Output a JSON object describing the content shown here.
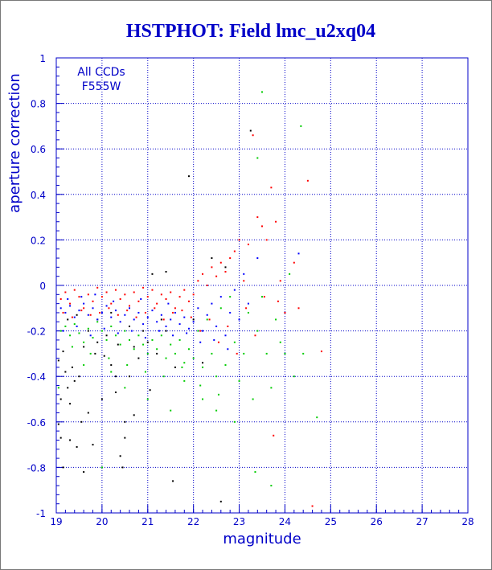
{
  "chart_data": {
    "type": "scatter",
    "title": "HSTPHOT: Field lmc_u2xq04",
    "xlabel": "magnitude",
    "ylabel": "aperture correction",
    "xlim": [
      19,
      28
    ],
    "ylim": [
      -1,
      1
    ],
    "x_ticks": [
      "19",
      "20",
      "21",
      "22",
      "23",
      "24",
      "25",
      "26",
      "27",
      "28"
    ],
    "y_ticks": [
      "-1",
      "-0.8",
      "-0.6",
      "-0.4",
      "-0.2",
      "0",
      "0.2",
      "0.4",
      "0.6",
      "0.8",
      "1"
    ],
    "grid": "dotted",
    "annotations": [
      "All CCDs",
      "F555W"
    ],
    "series": [
      {
        "color": "#000000",
        "points": [
          [
            19.05,
            -0.33
          ],
          [
            19.1,
            -0.5
          ],
          [
            19.15,
            -0.29
          ],
          [
            19.2,
            -0.38
          ],
          [
            19.25,
            -0.45
          ],
          [
            19.3,
            -0.52
          ],
          [
            19.35,
            -0.36
          ],
          [
            19.4,
            -0.42
          ],
          [
            19.5,
            -0.4
          ],
          [
            19.55,
            -0.6
          ],
          [
            19.6,
            -0.27
          ],
          [
            19.7,
            -0.56
          ],
          [
            19.8,
            -0.7
          ],
          [
            19.85,
            -0.3
          ],
          [
            19.9,
            -0.25
          ],
          [
            20.0,
            -0.5
          ],
          [
            20.05,
            -0.31
          ],
          [
            20.1,
            -0.22
          ],
          [
            20.2,
            -0.35
          ],
          [
            20.3,
            -0.47
          ],
          [
            20.35,
            -0.26
          ],
          [
            20.45,
            -0.8
          ],
          [
            20.5,
            -0.6
          ],
          [
            20.6,
            -0.4
          ],
          [
            20.7,
            -0.27
          ],
          [
            20.8,
            -0.32
          ],
          [
            20.9,
            -0.2
          ],
          [
            21.0,
            -0.25
          ],
          [
            21.2,
            -0.3
          ],
          [
            21.4,
            -0.2
          ],
          [
            21.55,
            -0.86
          ],
          [
            21.9,
            0.48
          ],
          [
            22.2,
            -0.34
          ],
          [
            22.6,
            -0.95
          ],
          [
            23.25,
            0.68
          ],
          [
            19.1,
            -0.67
          ],
          [
            19.15,
            -0.8
          ],
          [
            19.05,
            -0.61
          ],
          [
            19.3,
            -0.68
          ],
          [
            19.45,
            -0.71
          ],
          [
            20.5,
            -0.67
          ],
          [
            20.4,
            -0.75
          ],
          [
            19.6,
            -0.82
          ],
          [
            20.7,
            -0.57
          ],
          [
            21.05,
            -0.46
          ],
          [
            21.6,
            -0.36
          ],
          [
            22.7,
            0.08
          ],
          [
            21.4,
            0.06
          ],
          [
            21.1,
            0.05
          ],
          [
            20.3,
            -0.4
          ],
          [
            19.7,
            -0.2
          ],
          [
            19.9,
            -0.15
          ],
          [
            20.2,
            -0.12
          ],
          [
            20.6,
            -0.18
          ],
          [
            21.3,
            -0.15
          ],
          [
            19.25,
            -0.15
          ],
          [
            19.45,
            -0.13
          ],
          [
            22.0,
            -0.15
          ],
          [
            22.4,
            0.12
          ]
        ]
      },
      {
        "color": "#ff0000",
        "points": [
          [
            19.1,
            -0.06
          ],
          [
            19.2,
            -0.03
          ],
          [
            19.3,
            -0.08
          ],
          [
            19.4,
            -0.02
          ],
          [
            19.5,
            -0.05
          ],
          [
            19.6,
            -0.1
          ],
          [
            19.7,
            -0.04
          ],
          [
            19.8,
            -0.07
          ],
          [
            19.9,
            -0.01
          ],
          [
            20.0,
            -0.05
          ],
          [
            20.1,
            -0.03
          ],
          [
            20.2,
            -0.08
          ],
          [
            20.3,
            -0.02
          ],
          [
            20.4,
            -0.06
          ],
          [
            20.5,
            -0.04
          ],
          [
            20.6,
            -0.09
          ],
          [
            20.7,
            -0.03
          ],
          [
            20.8,
            -0.07
          ],
          [
            20.9,
            -0.01
          ],
          [
            21.0,
            -0.05
          ],
          [
            21.1,
            -0.02
          ],
          [
            21.2,
            -0.08
          ],
          [
            21.3,
            -0.04
          ],
          [
            21.4,
            -0.06
          ],
          [
            21.5,
            -0.03
          ],
          [
            21.6,
            -0.1
          ],
          [
            21.7,
            -0.05
          ],
          [
            21.8,
            -0.02
          ],
          [
            21.9,
            -0.07
          ],
          [
            22.0,
            -0.04
          ],
          [
            22.1,
            0.02
          ],
          [
            22.2,
            0.05
          ],
          [
            22.3,
            0.0
          ],
          [
            22.4,
            0.08
          ],
          [
            22.5,
            0.04
          ],
          [
            22.6,
            0.1
          ],
          [
            22.7,
            0.06
          ],
          [
            22.8,
            0.12
          ],
          [
            22.9,
            0.15
          ],
          [
            23.0,
            0.2
          ],
          [
            23.1,
            0.02
          ],
          [
            23.2,
            0.18
          ],
          [
            23.3,
            0.66
          ],
          [
            23.4,
            0.3
          ],
          [
            23.5,
            0.26
          ],
          [
            23.6,
            0.2
          ],
          [
            23.7,
            0.43
          ],
          [
            23.8,
            0.28
          ],
          [
            23.9,
            0.02
          ],
          [
            24.0,
            -0.12
          ],
          [
            24.2,
            0.1
          ],
          [
            24.5,
            0.46
          ],
          [
            24.8,
            -0.29
          ],
          [
            24.6,
            -0.97
          ],
          [
            23.75,
            -0.66
          ],
          [
            19.15,
            -0.12
          ],
          [
            19.35,
            -0.14
          ],
          [
            19.55,
            -0.11
          ],
          [
            19.75,
            -0.13
          ],
          [
            19.95,
            -0.12
          ],
          [
            20.15,
            -0.1
          ],
          [
            20.35,
            -0.13
          ],
          [
            20.55,
            -0.11
          ],
          [
            20.75,
            -0.14
          ],
          [
            20.95,
            -0.12
          ],
          [
            21.15,
            -0.1
          ],
          [
            21.35,
            -0.15
          ],
          [
            21.55,
            -0.12
          ],
          [
            21.75,
            -0.11
          ],
          [
            21.95,
            -0.14
          ],
          [
            22.15,
            -0.2
          ],
          [
            22.35,
            -0.15
          ],
          [
            22.55,
            -0.25
          ],
          [
            22.75,
            -0.18
          ],
          [
            22.95,
            -0.3
          ],
          [
            23.15,
            -0.1
          ],
          [
            23.35,
            -0.22
          ],
          [
            23.55,
            -0.05
          ],
          [
            23.85,
            -0.07
          ],
          [
            24.3,
            -0.1
          ]
        ]
      },
      {
        "color": "#0000ff",
        "points": [
          [
            19.1,
            -0.1
          ],
          [
            19.2,
            -0.12
          ],
          [
            19.3,
            -0.09
          ],
          [
            19.4,
            -0.14
          ],
          [
            19.5,
            -0.11
          ],
          [
            19.6,
            -0.08
          ],
          [
            19.7,
            -0.13
          ],
          [
            19.8,
            -0.1
          ],
          [
            19.9,
            -0.15
          ],
          [
            20.0,
            -0.12
          ],
          [
            20.1,
            -0.09
          ],
          [
            20.2,
            -0.14
          ],
          [
            20.3,
            -0.11
          ],
          [
            20.4,
            -0.16
          ],
          [
            20.5,
            -0.13
          ],
          [
            20.6,
            -0.1
          ],
          [
            20.7,
            -0.15
          ],
          [
            20.8,
            -0.12
          ],
          [
            20.9,
            -0.17
          ],
          [
            21.0,
            -0.14
          ],
          [
            21.1,
            -0.11
          ],
          [
            21.2,
            -0.16
          ],
          [
            21.3,
            -0.13
          ],
          [
            21.4,
            -0.18
          ],
          [
            21.5,
            -0.15
          ],
          [
            21.6,
            -0.12
          ],
          [
            21.7,
            -0.17
          ],
          [
            21.8,
            -0.14
          ],
          [
            21.9,
            -0.19
          ],
          [
            22.0,
            -0.16
          ],
          [
            22.1,
            -0.1
          ],
          [
            22.2,
            -0.2
          ],
          [
            22.3,
            -0.13
          ],
          [
            22.4,
            -0.08
          ],
          [
            22.5,
            -0.18
          ],
          [
            22.6,
            -0.05
          ],
          [
            22.7,
            -0.22
          ],
          [
            22.8,
            -0.12
          ],
          [
            22.9,
            -0.02
          ],
          [
            23.0,
            -0.15
          ],
          [
            23.1,
            0.05
          ],
          [
            23.2,
            -0.08
          ],
          [
            23.4,
            0.12
          ],
          [
            24.3,
            0.14
          ],
          [
            19.15,
            -0.2
          ],
          [
            19.45,
            -0.18
          ],
          [
            19.75,
            -0.22
          ],
          [
            20.05,
            -0.19
          ],
          [
            20.35,
            -0.21
          ],
          [
            20.65,
            -0.2
          ],
          [
            20.95,
            -0.23
          ],
          [
            21.25,
            -0.2
          ],
          [
            21.55,
            -0.22
          ],
          [
            21.85,
            -0.21
          ],
          [
            22.15,
            -0.25
          ],
          [
            22.45,
            -0.24
          ],
          [
            22.75,
            -0.28
          ],
          [
            19.25,
            -0.06
          ],
          [
            19.55,
            -0.05
          ],
          [
            19.85,
            -0.04
          ],
          [
            20.25,
            -0.07
          ],
          [
            20.85,
            -0.06
          ],
          [
            21.45,
            -0.08
          ]
        ]
      },
      {
        "color": "#00cc00",
        "points": [
          [
            19.1,
            -0.2
          ],
          [
            19.2,
            -0.18
          ],
          [
            19.3,
            -0.22
          ],
          [
            19.4,
            -0.17
          ],
          [
            19.5,
            -0.21
          ],
          [
            19.6,
            -0.25
          ],
          [
            19.7,
            -0.19
          ],
          [
            19.8,
            -0.23
          ],
          [
            19.9,
            -0.16
          ],
          [
            20.0,
            -0.2
          ],
          [
            20.1,
            -0.24
          ],
          [
            20.2,
            -0.18
          ],
          [
            20.3,
            -0.22
          ],
          [
            20.4,
            -0.26
          ],
          [
            20.5,
            -0.2
          ],
          [
            20.6,
            -0.24
          ],
          [
            20.7,
            -0.28
          ],
          [
            20.8,
            -0.22
          ],
          [
            20.9,
            -0.26
          ],
          [
            21.0,
            -0.3
          ],
          [
            21.1,
            -0.24
          ],
          [
            21.2,
            -0.28
          ],
          [
            21.3,
            -0.22
          ],
          [
            21.4,
            -0.32
          ],
          [
            21.5,
            -0.26
          ],
          [
            21.6,
            -0.3
          ],
          [
            21.7,
            -0.24
          ],
          [
            21.8,
            -0.34
          ],
          [
            21.9,
            -0.28
          ],
          [
            22.0,
            -0.32
          ],
          [
            22.1,
            -0.2
          ],
          [
            22.2,
            -0.36
          ],
          [
            22.3,
            -0.15
          ],
          [
            22.4,
            -0.3
          ],
          [
            22.5,
            -0.4
          ],
          [
            22.6,
            -0.1
          ],
          [
            22.7,
            -0.35
          ],
          [
            22.8,
            -0.05
          ],
          [
            22.9,
            -0.25
          ],
          [
            23.0,
            -0.42
          ],
          [
            23.1,
            -0.3
          ],
          [
            23.2,
            -0.12
          ],
          [
            23.3,
            -0.5
          ],
          [
            23.4,
            -0.2
          ],
          [
            23.5,
            -0.05
          ],
          [
            23.6,
            -0.3
          ],
          [
            23.7,
            -0.45
          ],
          [
            23.8,
            -0.15
          ],
          [
            24.0,
            -0.3
          ],
          [
            24.2,
            -0.4
          ],
          [
            24.4,
            -0.3
          ],
          [
            24.7,
            -0.58
          ],
          [
            23.5,
            0.85
          ],
          [
            24.35,
            0.7
          ],
          [
            23.35,
            -0.82
          ],
          [
            23.7,
            -0.88
          ],
          [
            23.4,
            0.56
          ],
          [
            20.0,
            -0.8
          ],
          [
            19.05,
            -0.45
          ],
          [
            20.5,
            -0.45
          ],
          [
            21.0,
            -0.5
          ],
          [
            21.5,
            -0.55
          ],
          [
            22.5,
            -0.55
          ],
          [
            20.2,
            -0.38
          ],
          [
            19.6,
            -0.35
          ],
          [
            21.8,
            -0.42
          ],
          [
            22.9,
            -0.6
          ],
          [
            23.9,
            -0.25
          ],
          [
            24.1,
            0.05
          ],
          [
            22.2,
            -0.5
          ],
          [
            19.35,
            -0.27
          ],
          [
            19.75,
            -0.3
          ],
          [
            20.15,
            -0.32
          ],
          [
            20.55,
            -0.35
          ],
          [
            20.95,
            -0.38
          ],
          [
            21.35,
            -0.4
          ],
          [
            21.75,
            -0.36
          ],
          [
            22.15,
            -0.44
          ],
          [
            22.55,
            -0.48
          ]
        ]
      }
    ]
  }
}
